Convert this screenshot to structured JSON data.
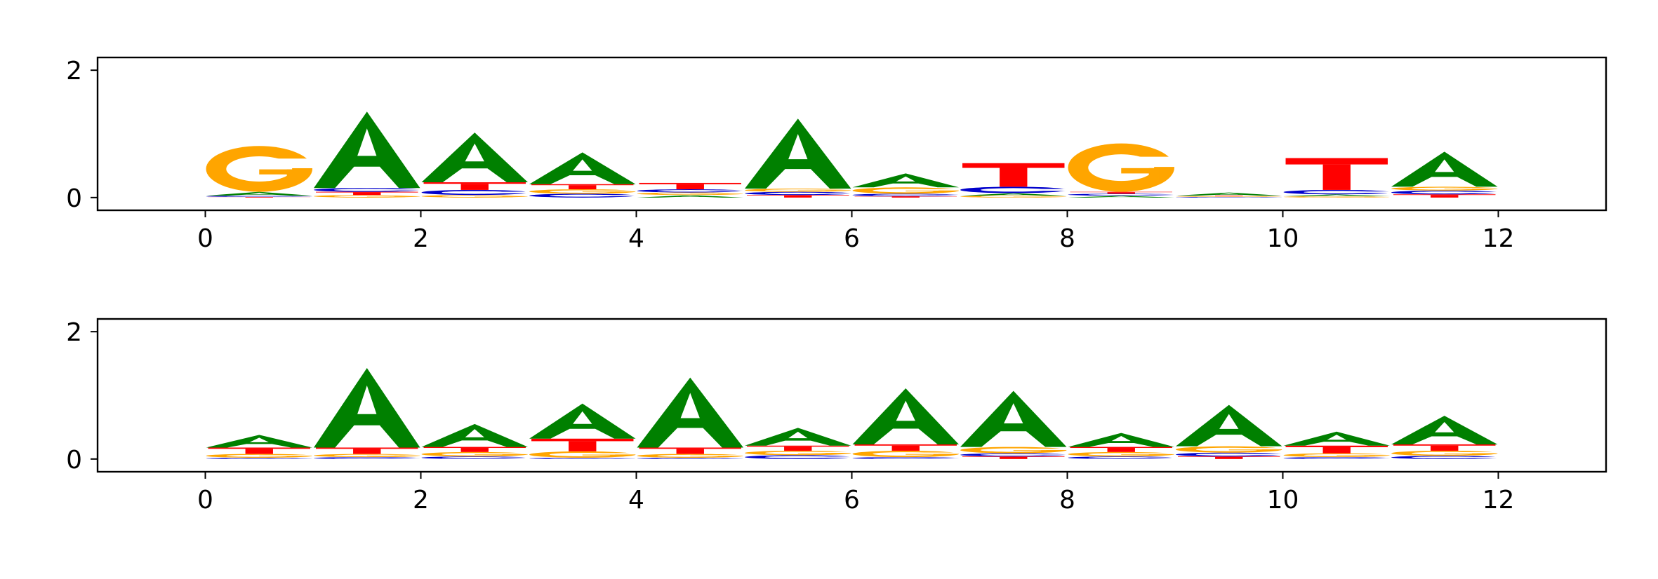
{
  "colors": {
    "A": "#008000",
    "C": "#0000cc",
    "G": "#ffa500",
    "T": "#ff0000"
  },
  "chart_data": [
    {
      "type": "sequence-logo",
      "alphabet": [
        "A",
        "C",
        "G",
        "T"
      ],
      "xlim": [
        -1,
        13
      ],
      "ylim": [
        -0.2,
        2.2
      ],
      "xticks": [
        "0",
        "2",
        "4",
        "6",
        "8",
        "10",
        "12"
      ],
      "yticks": [
        "0",
        "2"
      ],
      "heights": [
        {
          "A": 0.06,
          "C": 0.02,
          "G": 0.72,
          "T": 0.01
        },
        {
          "A": 1.2,
          "C": 0.06,
          "G": 0.04,
          "T": 0.05
        },
        {
          "A": 0.78,
          "C": 0.08,
          "G": 0.04,
          "T": 0.12
        },
        {
          "A": 0.5,
          "C": 0.06,
          "G": 0.07,
          "T": 0.08
        },
        {
          "A": 0.04,
          "C": 0.05,
          "G": 0.04,
          "T": 0.1
        },
        {
          "A": 1.1,
          "C": 0.05,
          "G": 0.05,
          "T": 0.04
        },
        {
          "A": 0.22,
          "C": 0.04,
          "G": 0.1,
          "T": 0.02
        },
        {
          "A": 0.04,
          "C": 0.1,
          "G": 0.03,
          "T": 0.37
        },
        {
          "A": 0.03,
          "C": 0.03,
          "G": 0.76,
          "T": 0.03
        },
        {
          "A": 0.05,
          "C": 0.01,
          "G": 0.01,
          "T": 0.01
        },
        {
          "A": 0.03,
          "C": 0.07,
          "G": 0.02,
          "T": 0.5
        },
        {
          "A": 0.55,
          "C": 0.06,
          "G": 0.06,
          "T": 0.05
        }
      ]
    },
    {
      "type": "sequence-logo",
      "alphabet": [
        "A",
        "C",
        "G",
        "T"
      ],
      "xlim": [
        -1,
        13
      ],
      "ylim": [
        -0.2,
        2.2
      ],
      "xticks": [
        "0",
        "2",
        "4",
        "6",
        "8",
        "10",
        "12"
      ],
      "yticks": [
        "0",
        "2"
      ],
      "heights": [
        {
          "A": 0.2,
          "C": 0.02,
          "G": 0.06,
          "T": 0.1
        },
        {
          "A": 1.25,
          "C": 0.03,
          "G": 0.05,
          "T": 0.1
        },
        {
          "A": 0.36,
          "C": 0.04,
          "G": 0.07,
          "T": 0.08
        },
        {
          "A": 0.55,
          "C": 0.02,
          "G": 0.1,
          "T": 0.2
        },
        {
          "A": 1.1,
          "C": 0.02,
          "G": 0.06,
          "T": 0.1
        },
        {
          "A": 0.28,
          "C": 0.06,
          "G": 0.07,
          "T": 0.08
        },
        {
          "A": 0.88,
          "C": 0.03,
          "G": 0.1,
          "T": 0.1
        },
        {
          "A": 0.88,
          "C": 0.05,
          "G": 0.1,
          "T": 0.04
        },
        {
          "A": 0.22,
          "C": 0.04,
          "G": 0.07,
          "T": 0.08
        },
        {
          "A": 0.65,
          "C": 0.06,
          "G": 0.1,
          "T": 0.04
        },
        {
          "A": 0.22,
          "C": 0.03,
          "G": 0.06,
          "T": 0.12
        },
        {
          "A": 0.45,
          "C": 0.05,
          "G": 0.08,
          "T": 0.1
        }
      ]
    }
  ]
}
